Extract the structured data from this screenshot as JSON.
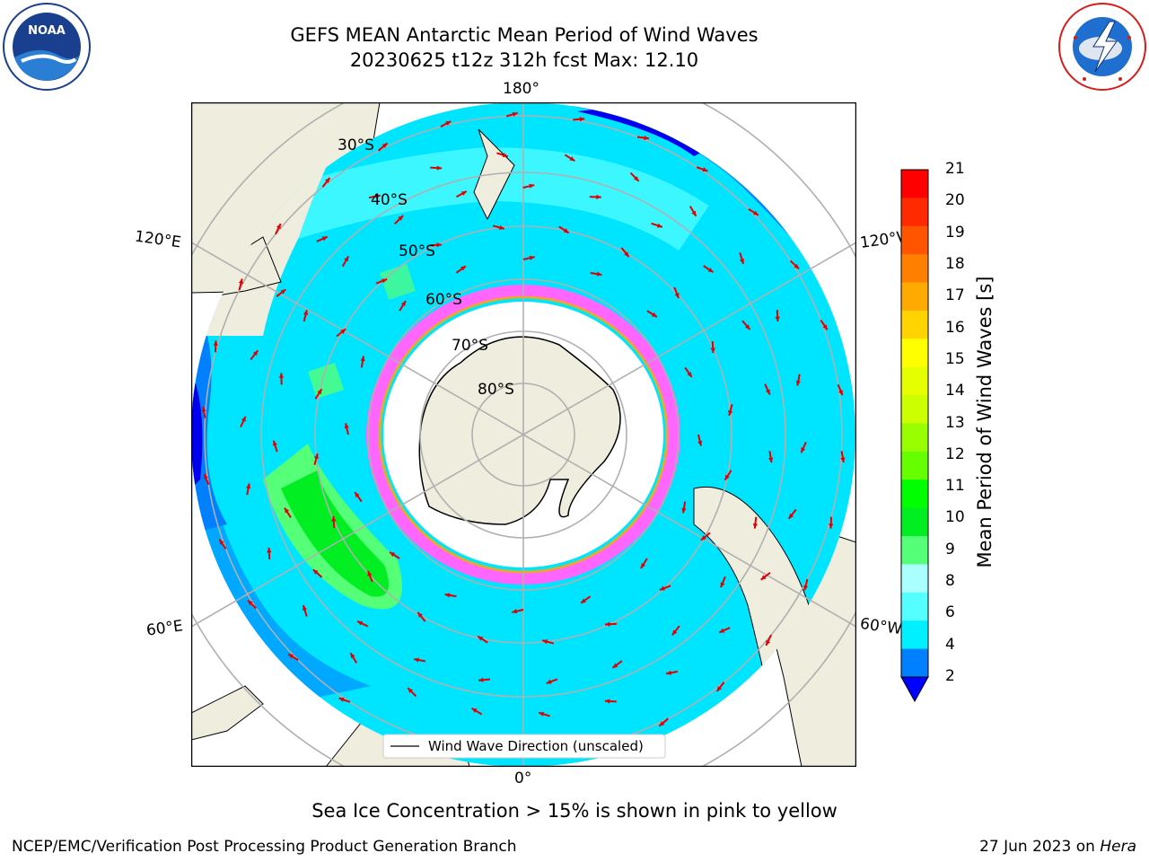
{
  "title_line1": "GEFS MEAN Antarctic Mean Period of Wind Waves",
  "title_line2": "20230625 t12z 312h fcst   Max: 12.10",
  "lon_labels": {
    "top": "180°",
    "bottom": "0°",
    "upper_left": "120°E",
    "upper_right": "120°W",
    "lower_left": "60°E",
    "lower_right": "60°W"
  },
  "lat_labels": [
    "30°S",
    "40°S",
    "50°S",
    "60°S",
    "70°S",
    "80°S"
  ],
  "legend_label": "Wind Wave Direction (unscaled)",
  "colorbar": {
    "label": "Mean Period of Wind Waves [s]",
    "ticks": [
      "21",
      "20",
      "19",
      "18",
      "17",
      "16",
      "15",
      "14",
      "13",
      "12",
      "11",
      "10",
      "9",
      "8",
      "6",
      "4",
      "2"
    ],
    "colors": [
      "#ff0000",
      "#ff2a00",
      "#ff5500",
      "#ff8000",
      "#ffaa00",
      "#ffd400",
      "#ffff00",
      "#e6ff00",
      "#ccff00",
      "#99ff00",
      "#66ff00",
      "#00ff00",
      "#00ee22",
      "#55ff77",
      "#aaffff",
      "#55ffff",
      "#00f0ff",
      "#0080ff"
    ],
    "under_color": "#0000ff"
  },
  "note": "Sea Ice Concentration > 15% is shown in pink to yellow",
  "footer_left": "NCEP/EMC/Verification Post Processing Product Generation Branch",
  "footer_date": "27 Jun 2023 on",
  "footer_host": "Hera",
  "logos": {
    "noaa": "NOAA",
    "nws": "NATIONAL WEATHER SERVICE"
  }
}
